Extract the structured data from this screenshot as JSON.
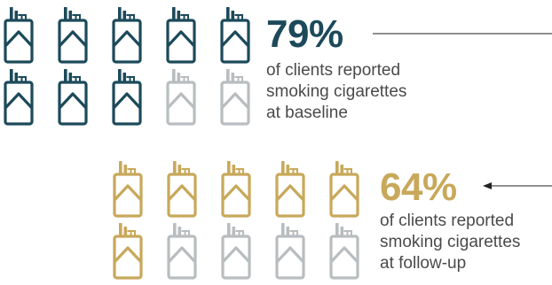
{
  "colors": {
    "baseline": "#1c4a5a",
    "followup": "#c8a85a",
    "inactive": "#b9bdbf",
    "line": "#222222",
    "text": "#4a4a4a"
  },
  "icon": "cigarette-pack-icon",
  "chart_data": {
    "type": "pictograph",
    "icons_per_group": 10,
    "groups": [
      {
        "name": "baseline",
        "percent": 79,
        "percent_label": "79%",
        "filled_icons": 8,
        "description": [
          "of clients reported",
          "smoking cigarettes",
          "at baseline"
        ],
        "color": "#1c4a5a"
      },
      {
        "name": "follow-up",
        "percent": 64,
        "percent_label": "64%",
        "filled_icons": 6,
        "description": [
          "of clients reported",
          "smoking cigarettes",
          "at follow-up"
        ],
        "color": "#c8a85a"
      }
    ]
  }
}
